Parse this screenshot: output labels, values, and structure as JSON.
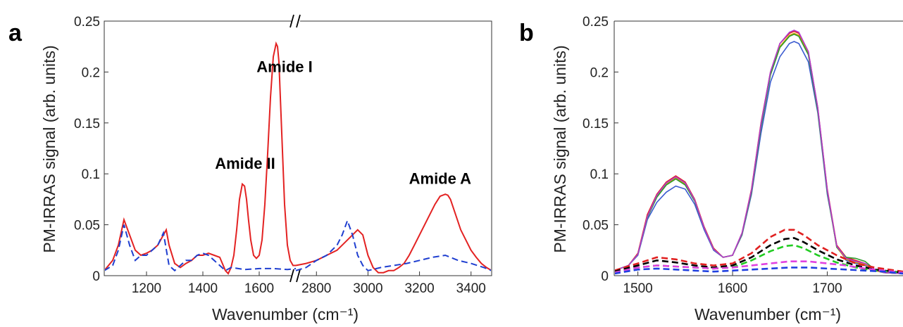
{
  "chart_data": [
    {
      "type": "line",
      "panel_label": "a",
      "xlabel": "Wavenumber  (cm⁻¹)",
      "ylabel": "PM-IRRAS signal  (arb. units)",
      "ylim": [
        0,
        0.25
      ],
      "yticks": [
        "0",
        "0.05",
        "0.1",
        "0.15",
        "0.2",
        "0.25"
      ],
      "broken_axis": true,
      "segments": [
        {
          "xlim": [
            1050,
            1730
          ],
          "xticks": [
            "1200",
            "1400",
            "1600"
          ]
        },
        {
          "xlim": [
            2720,
            3480
          ],
          "xticks": [
            "2800",
            "3000",
            "3200",
            "3400"
          ]
        }
      ],
      "annotations": [
        {
          "text": "Amide II",
          "x": 1550,
          "y": 0.105
        },
        {
          "text": "Amide I",
          "x": 1690,
          "y": 0.2
        },
        {
          "text": "Amide A",
          "x": 3280,
          "y": 0.09
        }
      ],
      "series": [
        {
          "color": "#e32222",
          "dash": "solid",
          "x": [
            1050,
            1080,
            1100,
            1120,
            1140,
            1160,
            1180,
            1200,
            1220,
            1240,
            1260,
            1270,
            1280,
            1300,
            1320,
            1340,
            1360,
            1380,
            1400,
            1420,
            1440,
            1460,
            1480,
            1490,
            1500,
            1510,
            1520,
            1530,
            1540,
            1548,
            1555,
            1562,
            1570,
            1580,
            1590,
            1600,
            1610,
            1620,
            1630,
            1640,
            1650,
            1660,
            1665,
            1670,
            1680,
            1690,
            1700,
            1710,
            1720,
            1730,
            2720,
            2760,
            2800,
            2840,
            2880,
            2920,
            2960,
            2980,
            3000,
            3020,
            3040,
            3060,
            3080,
            3100,
            3120,
            3140,
            3160,
            3180,
            3200,
            3220,
            3240,
            3260,
            3280,
            3300,
            3310,
            3320,
            3340,
            3360,
            3380,
            3400,
            3420,
            3440,
            3460,
            3480
          ],
          "y": [
            0.005,
            0.015,
            0.03,
            0.055,
            0.04,
            0.025,
            0.02,
            0.022,
            0.025,
            0.03,
            0.04,
            0.045,
            0.03,
            0.012,
            0.008,
            0.012,
            0.015,
            0.02,
            0.02,
            0.022,
            0.02,
            0.018,
            0.005,
            0.002,
            0.008,
            0.02,
            0.045,
            0.075,
            0.09,
            0.088,
            0.075,
            0.055,
            0.035,
            0.02,
            0.017,
            0.02,
            0.035,
            0.07,
            0.12,
            0.175,
            0.215,
            0.228,
            0.225,
            0.21,
            0.14,
            0.07,
            0.03,
            0.015,
            0.01,
            0.01,
            0.01,
            0.012,
            0.015,
            0.02,
            0.025,
            0.035,
            0.045,
            0.04,
            0.02,
            0.008,
            0.003,
            0.003,
            0.005,
            0.005,
            0.008,
            0.012,
            0.02,
            0.03,
            0.04,
            0.05,
            0.06,
            0.07,
            0.078,
            0.08,
            0.079,
            0.075,
            0.06,
            0.045,
            0.035,
            0.025,
            0.018,
            0.012,
            0.008,
            0.005
          ]
        },
        {
          "color": "#1f3fd0",
          "dash": "dashed",
          "x": [
            1050,
            1080,
            1100,
            1120,
            1140,
            1160,
            1180,
            1200,
            1220,
            1240,
            1260,
            1280,
            1300,
            1320,
            1340,
            1360,
            1380,
            1400,
            1420,
            1440,
            1460,
            1480,
            1500,
            1550,
            1600,
            1650,
            1700,
            1730,
            2720,
            2760,
            2800,
            2840,
            2880,
            2900,
            2920,
            2940,
            2960,
            2980,
            3000,
            3050,
            3100,
            3150,
            3200,
            3250,
            3300,
            3350,
            3400,
            3450,
            3480
          ],
          "y": [
            0.005,
            0.01,
            0.025,
            0.05,
            0.03,
            0.015,
            0.02,
            0.02,
            0.025,
            0.03,
            0.042,
            0.01,
            0.005,
            0.01,
            0.015,
            0.015,
            0.02,
            0.022,
            0.02,
            0.015,
            0.01,
            0.005,
            0.008,
            0.006,
            0.007,
            0.007,
            0.006,
            0.007,
            0.005,
            0.008,
            0.015,
            0.02,
            0.03,
            0.04,
            0.054,
            0.04,
            0.02,
            0.01,
            0.005,
            0.008,
            0.01,
            0.012,
            0.015,
            0.018,
            0.02,
            0.015,
            0.012,
            0.008,
            0.005
          ]
        }
      ]
    },
    {
      "type": "line",
      "panel_label": "b",
      "xlabel": "Wavenumber  (cm⁻¹)",
      "ylabel": "PM-IRRAS signal  (arb. units)",
      "xlim": [
        1475,
        1780
      ],
      "ylim": [
        0,
        0.25
      ],
      "xticks": [
        "1500",
        "1600",
        "1700"
      ],
      "yticks": [
        "0",
        "0.05",
        "0.1",
        "0.15",
        "0.2",
        "0.25"
      ],
      "series": [
        {
          "color": "#3b5bd0",
          "dash": "solid",
          "x": [
            1475,
            1490,
            1500,
            1510,
            1520,
            1530,
            1540,
            1550,
            1560,
            1570,
            1580,
            1590,
            1600,
            1610,
            1620,
            1630,
            1640,
            1650,
            1660,
            1665,
            1670,
            1680,
            1690,
            1700,
            1710,
            1720,
            1730,
            1740,
            1750,
            1760,
            1780
          ],
          "y": [
            0.005,
            0.01,
            0.02,
            0.055,
            0.072,
            0.082,
            0.088,
            0.085,
            0.07,
            0.045,
            0.025,
            0.018,
            0.02,
            0.04,
            0.08,
            0.14,
            0.19,
            0.215,
            0.228,
            0.23,
            0.228,
            0.21,
            0.16,
            0.08,
            0.03,
            0.015,
            0.012,
            0.01,
            0.005,
            0.003,
            0.002
          ]
        },
        {
          "color": "#e02020",
          "dash": "solid",
          "x": [
            1475,
            1490,
            1500,
            1510,
            1520,
            1530,
            1540,
            1550,
            1560,
            1570,
            1580,
            1590,
            1600,
            1610,
            1620,
            1630,
            1640,
            1650,
            1660,
            1665,
            1670,
            1680,
            1690,
            1700,
            1710,
            1720,
            1730,
            1740,
            1750,
            1760,
            1780
          ],
          "y": [
            0.005,
            0.01,
            0.022,
            0.06,
            0.08,
            0.092,
            0.098,
            0.092,
            0.075,
            0.048,
            0.027,
            0.018,
            0.02,
            0.042,
            0.085,
            0.15,
            0.2,
            0.228,
            0.238,
            0.24,
            0.238,
            0.22,
            0.165,
            0.085,
            0.03,
            0.018,
            0.015,
            0.012,
            0.006,
            0.003,
            0.002
          ]
        },
        {
          "color": "#d5a000",
          "dash": "solid",
          "x": [
            1475,
            1490,
            1500,
            1510,
            1520,
            1530,
            1540,
            1550,
            1560,
            1570,
            1580,
            1590,
            1600,
            1610,
            1620,
            1630,
            1640,
            1650,
            1660,
            1665,
            1670,
            1680,
            1690,
            1700,
            1710,
            1720,
            1730,
            1740,
            1750,
            1760,
            1780
          ],
          "y": [
            0.005,
            0.01,
            0.021,
            0.058,
            0.078,
            0.09,
            0.096,
            0.09,
            0.074,
            0.047,
            0.026,
            0.018,
            0.02,
            0.041,
            0.083,
            0.147,
            0.198,
            0.225,
            0.236,
            0.238,
            0.236,
            0.218,
            0.163,
            0.083,
            0.028,
            0.016,
            0.013,
            0.011,
            0.005,
            0.003,
            0.002
          ]
        },
        {
          "color": "#2e9a2e",
          "dash": "solid",
          "x": [
            1475,
            1490,
            1500,
            1510,
            1520,
            1530,
            1540,
            1550,
            1560,
            1570,
            1580,
            1590,
            1600,
            1610,
            1620,
            1630,
            1640,
            1650,
            1660,
            1665,
            1670,
            1680,
            1690,
            1700,
            1710,
            1720,
            1730,
            1740,
            1750,
            1760,
            1780
          ],
          "y": [
            0.005,
            0.01,
            0.021,
            0.057,
            0.077,
            0.089,
            0.095,
            0.089,
            0.073,
            0.047,
            0.026,
            0.018,
            0.02,
            0.041,
            0.082,
            0.146,
            0.197,
            0.224,
            0.235,
            0.237,
            0.235,
            0.217,
            0.162,
            0.082,
            0.028,
            0.018,
            0.017,
            0.014,
            0.006,
            0.003,
            0.002
          ]
        },
        {
          "color": "#b03bd0",
          "dash": "solid",
          "x": [
            1475,
            1490,
            1500,
            1510,
            1520,
            1530,
            1540,
            1550,
            1560,
            1570,
            1580,
            1590,
            1600,
            1610,
            1620,
            1630,
            1640,
            1650,
            1660,
            1665,
            1670,
            1680,
            1690,
            1700,
            1710,
            1720,
            1730,
            1740,
            1750,
            1760,
            1780
          ],
          "y": [
            0.005,
            0.01,
            0.021,
            0.058,
            0.079,
            0.091,
            0.097,
            0.091,
            0.074,
            0.047,
            0.026,
            0.018,
            0.02,
            0.042,
            0.084,
            0.149,
            0.2,
            0.228,
            0.239,
            0.241,
            0.239,
            0.22,
            0.165,
            0.084,
            0.029,
            0.017,
            0.014,
            0.012,
            0.006,
            0.003,
            0.002
          ]
        },
        {
          "color": "#e02020",
          "dash": "dashed",
          "x": [
            1475,
            1500,
            1520,
            1540,
            1560,
            1580,
            1600,
            1620,
            1640,
            1655,
            1665,
            1675,
            1690,
            1710,
            1730,
            1750,
            1780
          ],
          "y": [
            0.005,
            0.012,
            0.018,
            0.016,
            0.012,
            0.01,
            0.012,
            0.022,
            0.038,
            0.045,
            0.045,
            0.04,
            0.03,
            0.02,
            0.012,
            0.008,
            0.004
          ]
        },
        {
          "color": "#000000",
          "dash": "dashed",
          "x": [
            1475,
            1500,
            1520,
            1540,
            1560,
            1580,
            1600,
            1620,
            1640,
            1655,
            1665,
            1675,
            1690,
            1710,
            1730,
            1750,
            1780
          ],
          "y": [
            0.004,
            0.01,
            0.015,
            0.013,
            0.01,
            0.008,
            0.01,
            0.018,
            0.03,
            0.036,
            0.037,
            0.033,
            0.025,
            0.016,
            0.01,
            0.006,
            0.003
          ]
        },
        {
          "color": "#22cc22",
          "dash": "dashed",
          "x": [
            1475,
            1500,
            1520,
            1540,
            1560,
            1580,
            1600,
            1620,
            1640,
            1655,
            1665,
            1675,
            1690,
            1710,
            1730,
            1750,
            1780
          ],
          "y": [
            0.003,
            0.008,
            0.01,
            0.009,
            0.008,
            0.007,
            0.008,
            0.015,
            0.024,
            0.029,
            0.03,
            0.027,
            0.02,
            0.013,
            0.008,
            0.005,
            0.003
          ]
        },
        {
          "color": "#e040e0",
          "dash": "dashed",
          "x": [
            1475,
            1500,
            1520,
            1540,
            1560,
            1580,
            1600,
            1620,
            1640,
            1660,
            1680,
            1700,
            1720,
            1740,
            1760,
            1780
          ],
          "y": [
            0.003,
            0.008,
            0.01,
            0.009,
            0.008,
            0.007,
            0.008,
            0.01,
            0.012,
            0.014,
            0.014,
            0.012,
            0.01,
            0.007,
            0.005,
            0.003
          ]
        },
        {
          "color": "#2040e0",
          "dash": "dashed",
          "x": [
            1475,
            1500,
            1520,
            1540,
            1560,
            1580,
            1600,
            1620,
            1640,
            1660,
            1680,
            1700,
            1720,
            1740,
            1760,
            1780
          ],
          "y": [
            0.002,
            0.006,
            0.007,
            0.006,
            0.005,
            0.004,
            0.005,
            0.006,
            0.007,
            0.008,
            0.008,
            0.007,
            0.006,
            0.005,
            0.004,
            0.002
          ]
        }
      ]
    }
  ]
}
